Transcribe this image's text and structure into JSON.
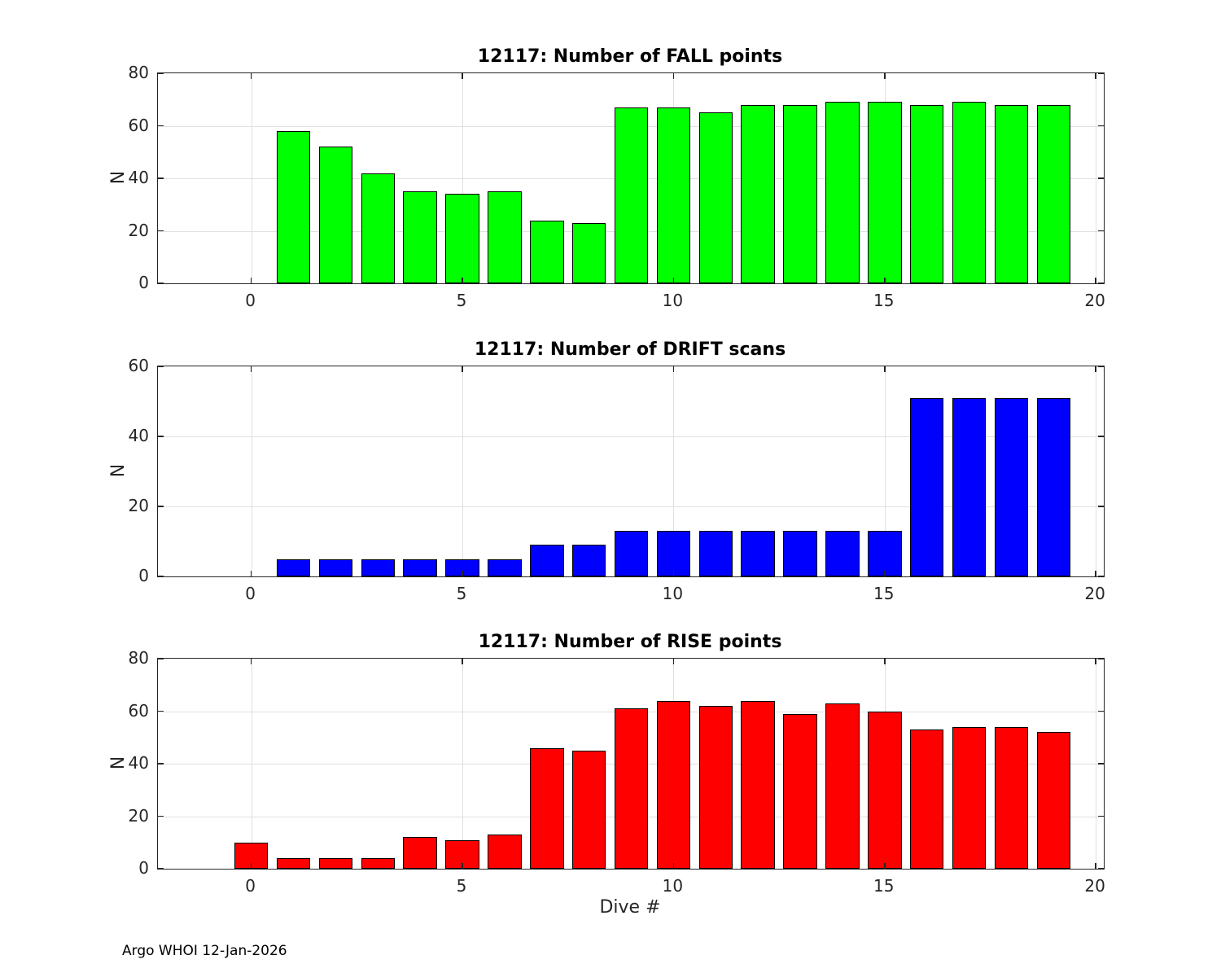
{
  "figure": {
    "xlabel": "Dive #",
    "footer": "Argo WHOI 12-Jan-2026"
  },
  "chart_data": [
    {
      "type": "bar",
      "title": "12117: Number of FALL points",
      "xlabel": "",
      "ylabel": "N",
      "bar_color": "#00ff00",
      "edge_color": "#000000",
      "x": [
        1,
        2,
        3,
        4,
        5,
        6,
        7,
        8,
        9,
        10,
        11,
        12,
        13,
        14,
        15,
        16,
        17,
        18,
        19
      ],
      "values": [
        58,
        52,
        42,
        35,
        34,
        35,
        24,
        23,
        67,
        67,
        65,
        68,
        68,
        69,
        69,
        68,
        69,
        68,
        68
      ],
      "xlim": [
        -2.21,
        20.19
      ],
      "ylim": [
        0,
        80
      ],
      "xticks": [
        0,
        5,
        10,
        15,
        20
      ],
      "yticks": [
        0,
        20,
        40,
        60,
        80
      ],
      "grid": true,
      "legend": "none"
    },
    {
      "type": "bar",
      "title": "12117: Number of DRIFT scans",
      "xlabel": "",
      "ylabel": "N",
      "bar_color": "#0000ff",
      "edge_color": "#000000",
      "x": [
        1,
        2,
        3,
        4,
        5,
        6,
        7,
        8,
        9,
        10,
        11,
        12,
        13,
        14,
        15,
        16,
        17,
        18,
        19
      ],
      "values": [
        5,
        5,
        5,
        5,
        5,
        5,
        9,
        9,
        13,
        13,
        13,
        13,
        13,
        13,
        13,
        51,
        51,
        51,
        51
      ],
      "xlim": [
        -2.21,
        20.19
      ],
      "ylim": [
        0,
        60
      ],
      "xticks": [
        0,
        5,
        10,
        15,
        20
      ],
      "yticks": [
        0,
        20,
        40,
        60
      ],
      "grid": true,
      "legend": "none"
    },
    {
      "type": "bar",
      "title": "12117: Number of RISE points",
      "xlabel": "Dive #",
      "ylabel": "N",
      "bar_color": "#ff0000",
      "edge_color": "#000000",
      "x": [
        0,
        1,
        2,
        3,
        4,
        5,
        6,
        7,
        8,
        9,
        10,
        11,
        12,
        13,
        14,
        15,
        16,
        17,
        18,
        19
      ],
      "values": [
        10,
        4,
        4,
        4,
        12,
        11,
        13,
        46,
        45,
        61,
        64,
        62,
        64,
        59,
        63,
        60,
        53,
        54,
        54,
        52
      ],
      "xlim": [
        -2.21,
        20.19
      ],
      "ylim": [
        0,
        80
      ],
      "xticks": [
        0,
        5,
        10,
        15,
        20
      ],
      "yticks": [
        0,
        20,
        40,
        60,
        80
      ],
      "grid": true,
      "legend": "none"
    }
  ]
}
